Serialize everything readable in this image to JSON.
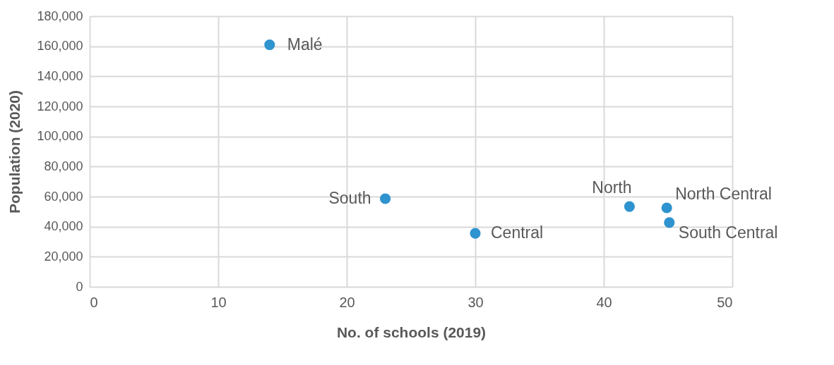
{
  "chart_data": {
    "type": "scatter",
    "xlabel": "No. of schools (2019)",
    "ylabel": "Population (2020)",
    "series": [
      {
        "color": "#2e93cf",
        "x": [
          14,
          23,
          30,
          42,
          44.9,
          45.1
        ],
        "values": [
          161000,
          58600,
          35600,
          53400,
          52500,
          42700
        ]
      }
    ],
    "annotations": [
      {
        "text": "Malé",
        "x": 14,
        "y": 161000
      },
      {
        "text": "South",
        "x": 23,
        "y": 58600
      },
      {
        "text": "Central",
        "x": 30,
        "y": 35600
      },
      {
        "text": "North",
        "x": 42,
        "y": 53400
      },
      {
        "text": "North Central",
        "x": 44.9,
        "y": 52500
      },
      {
        "text": "South Central",
        "x": 45.1,
        "y": 42700
      }
    ],
    "xlim": [
      0,
      50
    ],
    "xticks": [
      0,
      10,
      20,
      30,
      40,
      50
    ],
    "ylim": [
      0,
      180000
    ],
    "yticks": [
      0,
      {
        "value": 20000,
        "label": "20,000"
      },
      {
        "value": 40000,
        "label": "40,000"
      },
      {
        "value": 60000,
        "label": "60,000"
      },
      {
        "value": 80000,
        "label": "80,000"
      },
      {
        "value": 100000,
        "label": "100,000"
      },
      {
        "value": 120000,
        "label": "120,000"
      },
      {
        "value": 140000,
        "label": "140,000"
      },
      {
        "value": 160000,
        "label": "160,000"
      },
      {
        "value": 180000,
        "label": "180,000"
      }
    ],
    "grid": true,
    "marker": "circle"
  }
}
